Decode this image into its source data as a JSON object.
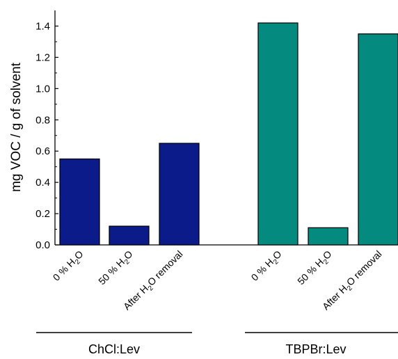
{
  "chart_data": {
    "type": "bar",
    "ylabel": "mg VOC / g of solvent",
    "ylim": [
      0,
      1.5
    ],
    "yticks": [
      "0.0",
      "0.2",
      "0.4",
      "0.6",
      "0.8",
      "1.0",
      "1.2",
      "1.4"
    ],
    "groups": [
      {
        "name": "ChCl:Lev",
        "color": "#0b1b8a",
        "categories": [
          {
            "label": {
              "pre": "0 % H",
              "sub": "2",
              "post": "O"
            },
            "value": 0.55
          },
          {
            "label": {
              "pre": "50 % H",
              "sub": "2",
              "post": "O"
            },
            "value": 0.12
          },
          {
            "label": {
              "pre": "After H",
              "sub": "2",
              "post": "O removal"
            },
            "value": 0.65
          }
        ]
      },
      {
        "name": "TBPBr:Lev",
        "color": "#058a7f",
        "categories": [
          {
            "label": {
              "pre": "0 % H",
              "sub": "2",
              "post": "O"
            },
            "value": 1.42
          },
          {
            "label": {
              "pre": "50 % H",
              "sub": "2",
              "post": "O"
            },
            "value": 0.11
          },
          {
            "label": {
              "pre": "After H",
              "sub": "2",
              "post": "O removal"
            },
            "value": 1.35
          }
        ]
      }
    ]
  }
}
